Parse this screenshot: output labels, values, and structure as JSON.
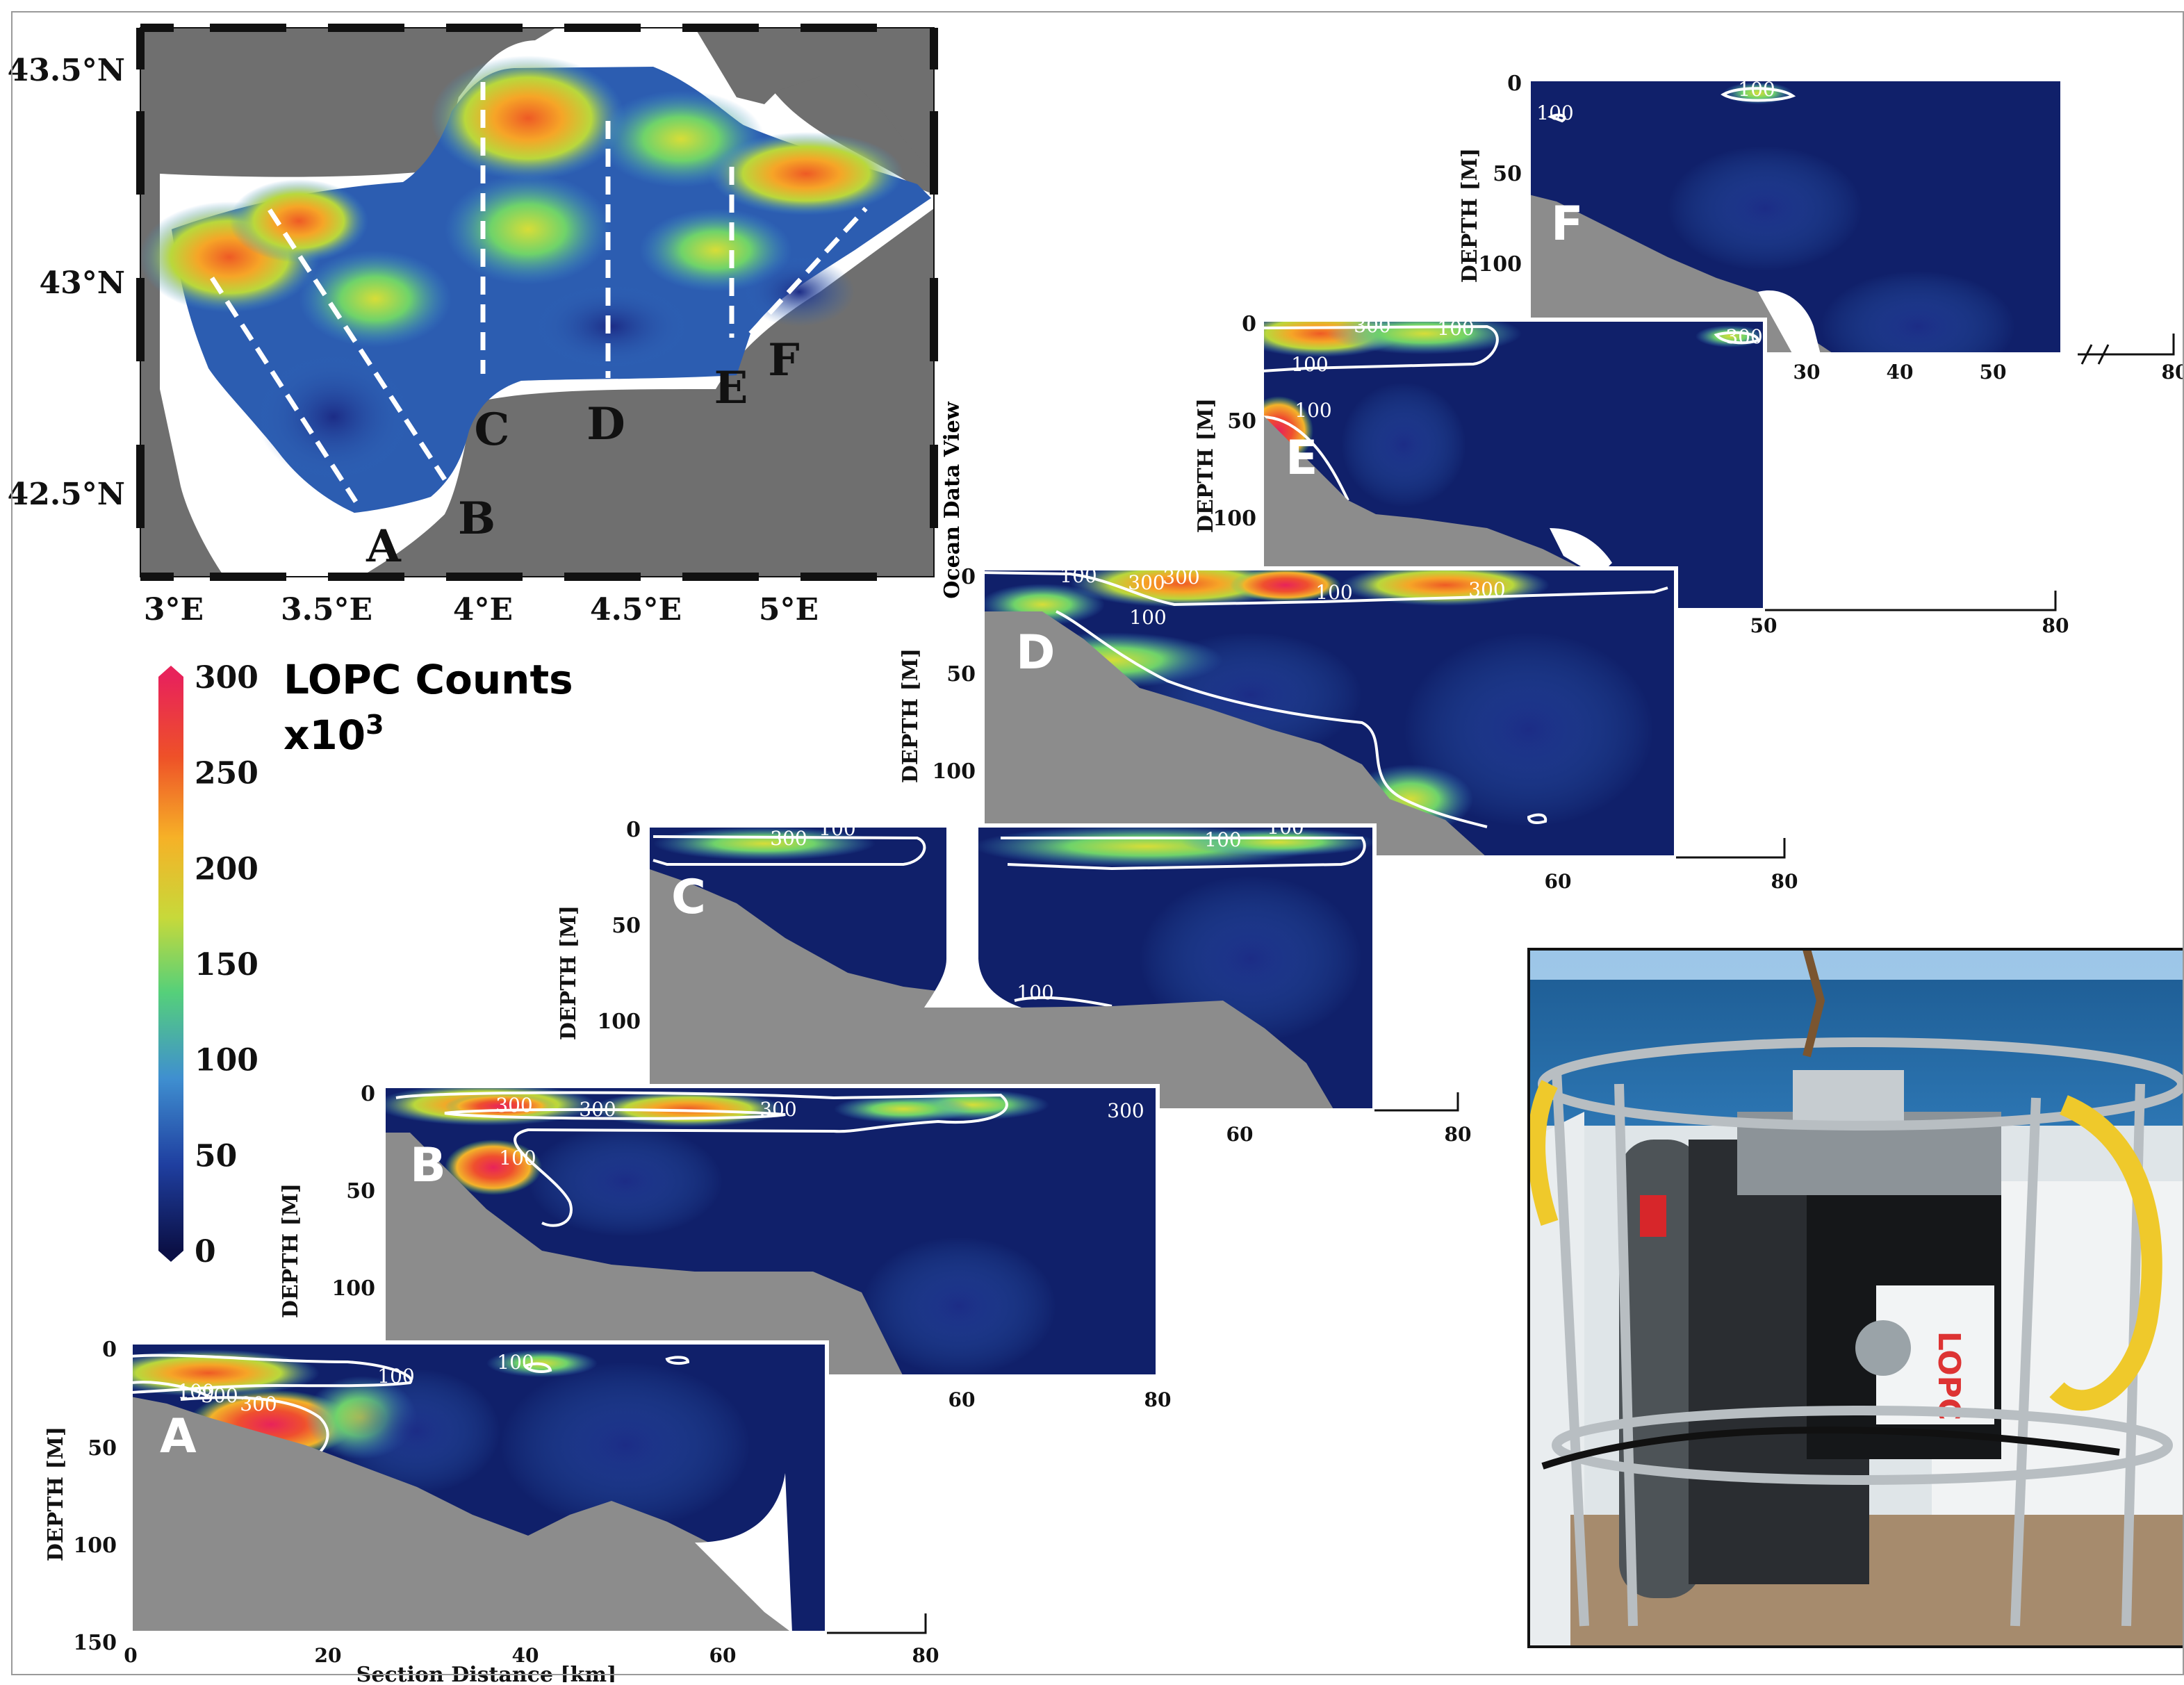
{
  "chart_data": [
    {
      "type": "heatmap",
      "panel": "map",
      "xticks": [
        "3°E",
        "3.5°E",
        "4°E",
        "4.5°E",
        "5°E"
      ],
      "yticks": [
        "43.5°N",
        "43°N",
        "42.5°N"
      ],
      "xlim": [
        2.9,
        5.45
      ],
      "ylim": [
        42.3,
        43.6
      ],
      "side_label": "Ocean Data View",
      "transects": [
        "A",
        "B",
        "C",
        "D",
        "E",
        "F"
      ],
      "colorbar": {
        "title_line1": "LOPC Counts",
        "title_line2": "x10",
        "title_sup": "3",
        "ticks": [
          "300",
          "250",
          "200",
          "150",
          "100",
          "50",
          "0"
        ],
        "range": [
          0,
          300
        ],
        "colors": [
          "#0b1046",
          "#1f3fa0",
          "#3f8fd0",
          "#55d07a",
          "#c7d93a",
          "#f6b127",
          "#ee5128",
          "#e8235a"
        ]
      }
    },
    {
      "type": "heatmap",
      "panel": "A",
      "label": "A",
      "xlabel": "Section Distance [km]",
      "ylabel": "DEPTH [M]",
      "xticks": [
        "0",
        "20",
        "40",
        "60",
        "80"
      ],
      "yticks": [
        "0",
        "50",
        "100",
        "150"
      ],
      "xlim": [
        0,
        80
      ],
      "ylim": [
        0,
        150
      ],
      "contours": [
        "100",
        "300",
        "300",
        "100",
        "100"
      ]
    },
    {
      "type": "heatmap",
      "panel": "B",
      "label": "B",
      "ylabel": "DEPTH [M]",
      "xticks": [
        "60",
        "80"
      ],
      "yticks": [
        "0",
        "50",
        "100"
      ],
      "contours": [
        "300",
        "300",
        "300",
        "100",
        "300"
      ]
    },
    {
      "type": "heatmap",
      "panel": "C",
      "label": "C",
      "ylabel": "DEPTH [M]",
      "xticks": [
        "60",
        "80"
      ],
      "yticks": [
        "0",
        "50",
        "100"
      ],
      "contours": [
        "100",
        "300",
        "100",
        "100",
        "100"
      ]
    },
    {
      "type": "heatmap",
      "panel": "D",
      "label": "D",
      "ylabel": "DEPTH [M]",
      "xticks": [
        "60",
        "80"
      ],
      "yticks": [
        "0",
        "50",
        "100"
      ],
      "contours": [
        "100",
        "300",
        "300",
        "100",
        "300",
        "100"
      ]
    },
    {
      "type": "heatmap",
      "panel": "E",
      "label": "E",
      "ylabel": "DEPTH [M]",
      "xticks": [
        "50",
        "80"
      ],
      "yticks": [
        "0",
        "50",
        "100"
      ],
      "contours": [
        "300",
        "100",
        "100",
        "300",
        "100"
      ]
    },
    {
      "type": "heatmap",
      "panel": "F",
      "label": "F",
      "ylabel": "DEPTH [M]",
      "xticks": [
        "30",
        "40",
        "50",
        "80"
      ],
      "yticks": [
        "0",
        "50",
        "100"
      ],
      "contours": [
        "100",
        "100"
      ]
    }
  ],
  "photo": {
    "logo_text": "LOPC"
  }
}
